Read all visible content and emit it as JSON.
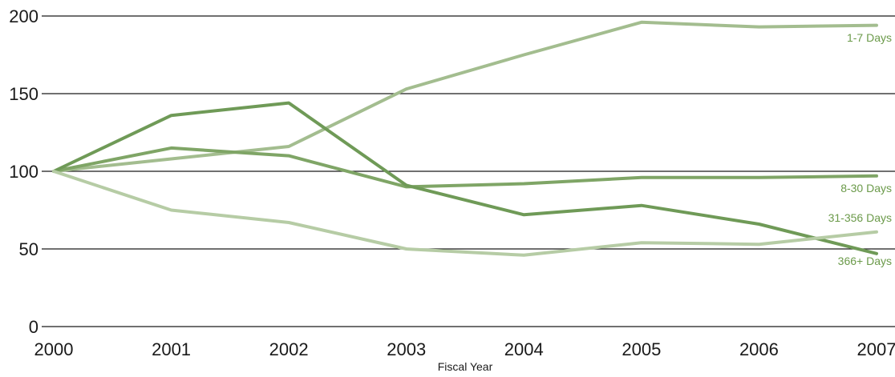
{
  "chart_data": {
    "type": "line",
    "title": "",
    "xlabel": "Fiscal Year",
    "ylabel": "",
    "x": [
      "2000",
      "2001",
      "2002",
      "2003",
      "2004",
      "2005",
      "2006",
      "2007"
    ],
    "ylim": [
      0,
      200
    ],
    "yticks": [
      "0",
      "50",
      "100",
      "150",
      "200"
    ],
    "grid": true,
    "legend": "inline labels at right end of lines",
    "series": [
      {
        "name": "1-7 Days",
        "color": "#a3bd8f",
        "values": [
          100,
          108,
          116,
          153,
          175,
          196,
          193,
          194
        ]
      },
      {
        "name": "8-30 Days",
        "color": "#7fa566",
        "values": [
          100,
          115,
          110,
          90,
          92,
          96,
          96,
          97
        ]
      },
      {
        "name": "31-356 Days",
        "color": "#6f9a57",
        "values": [
          100,
          136,
          144,
          91,
          72,
          78,
          66,
          47
        ]
      },
      {
        "name": "366+ Days",
        "color": "#b6cca5",
        "values": [
          100,
          75,
          67,
          50,
          46,
          54,
          53,
          61
        ]
      }
    ],
    "label_color": "#6b9a4a",
    "axis_color": "#1a1a1a"
  }
}
